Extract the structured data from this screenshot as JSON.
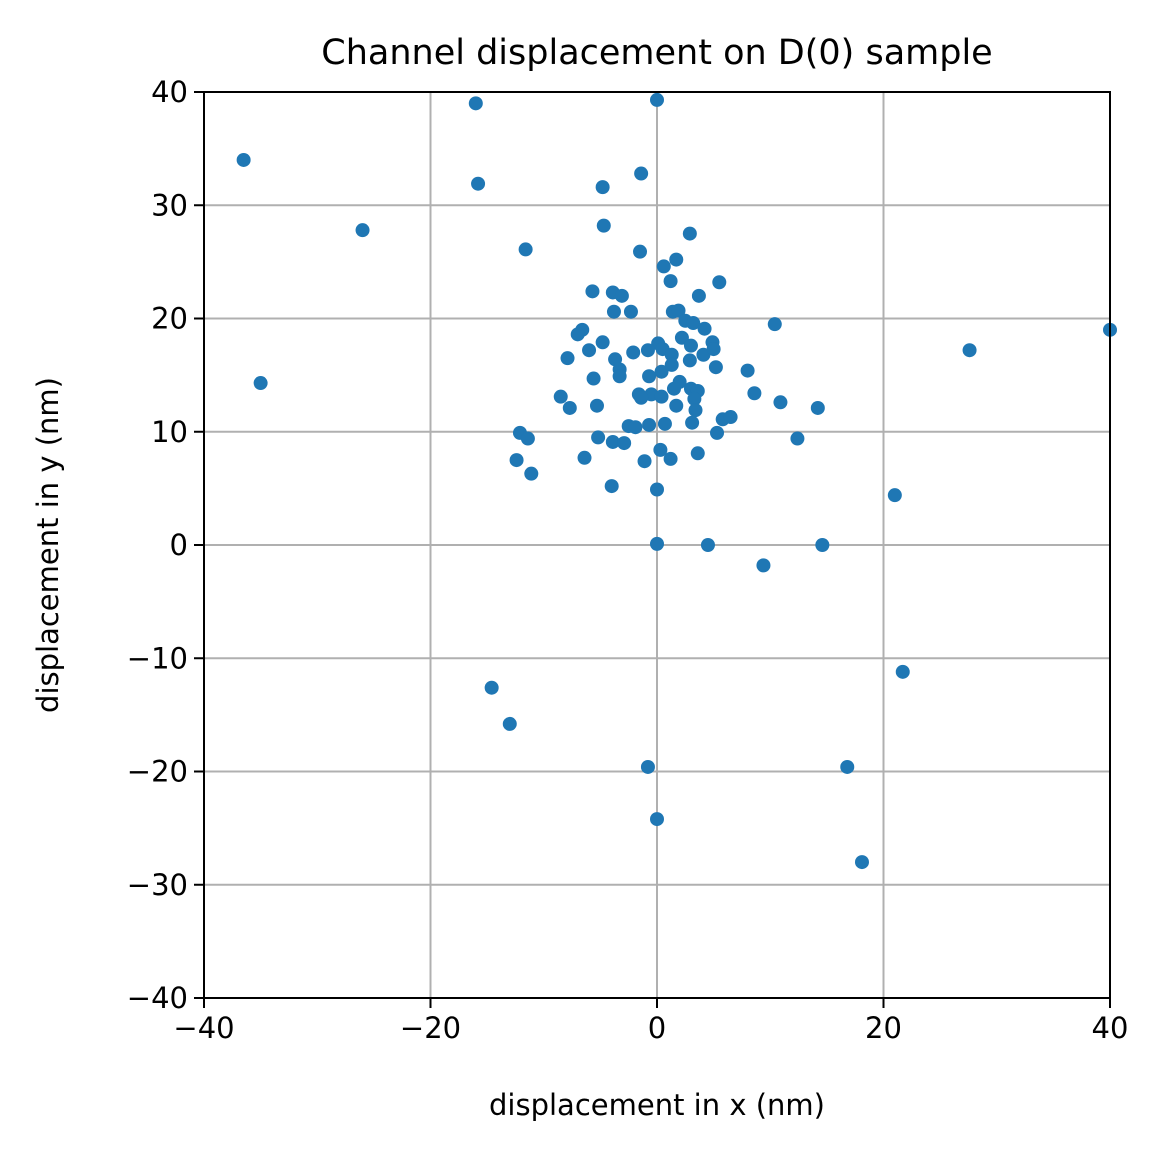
{
  "chart_data": {
    "type": "scatter",
    "title": "Channel displacement on D(0) sample",
    "xlabel": "displacement in x (nm)",
    "ylabel": "displacement in y (nm)",
    "xlim": [
      -40,
      40
    ],
    "ylim": [
      -40,
      40
    ],
    "xticks": [
      -40,
      -20,
      0,
      20,
      40
    ],
    "yticks": [
      -40,
      -30,
      -20,
      -10,
      0,
      10,
      20,
      30,
      40
    ],
    "xtick_labels": [
      "−40",
      "−20",
      "0",
      "20",
      "40"
    ],
    "ytick_labels": [
      "−40",
      "−30",
      "−20",
      "−10",
      "0",
      "10",
      "20",
      "30",
      "40"
    ],
    "grid": true,
    "color": "#1f77b4",
    "points": [
      [
        -16,
        39
      ],
      [
        0,
        39.3
      ],
      [
        -36.5,
        34
      ],
      [
        -15.8,
        31.9
      ],
      [
        -4.8,
        31.6
      ],
      [
        -1.4,
        32.8
      ],
      [
        -26,
        27.8
      ],
      [
        -4.7,
        28.2
      ],
      [
        2.9,
        27.5
      ],
      [
        -11.6,
        26.1
      ],
      [
        -1.5,
        25.9
      ],
      [
        0.6,
        24.6
      ],
      [
        1.7,
        25.2
      ],
      [
        1.2,
        23.3
      ],
      [
        5.5,
        23.2
      ],
      [
        -5.7,
        22.4
      ],
      [
        -3.9,
        22.3
      ],
      [
        -3.1,
        22.0
      ],
      [
        3.7,
        22.0
      ],
      [
        -3.8,
        20.6
      ],
      [
        -2.3,
        20.6
      ],
      [
        1.4,
        20.6
      ],
      [
        1.9,
        20.7
      ],
      [
        2.5,
        19.8
      ],
      [
        3.2,
        19.6
      ],
      [
        4.2,
        19.1
      ],
      [
        10.4,
        19.5
      ],
      [
        40,
        19.0
      ],
      [
        -6.6,
        19.0
      ],
      [
        -7.0,
        18.6
      ],
      [
        -4.8,
        17.9
      ],
      [
        2.2,
        18.3
      ],
      [
        4.9,
        17.9
      ],
      [
        0.1,
        17.8
      ],
      [
        3.0,
        17.6
      ],
      [
        -6.0,
        17.2
      ],
      [
        -2.1,
        17.0
      ],
      [
        -0.8,
        17.2
      ],
      [
        0.5,
        17.3
      ],
      [
        1.3,
        16.8
      ],
      [
        4.1,
        16.8
      ],
      [
        5.0,
        17.3
      ],
      [
        27.6,
        17.2
      ],
      [
        -7.9,
        16.5
      ],
      [
        -3.7,
        16.4
      ],
      [
        2.9,
        16.3
      ],
      [
        -3.3,
        15.5
      ],
      [
        0.4,
        15.3
      ],
      [
        1.3,
        15.9
      ],
      [
        5.2,
        15.7
      ],
      [
        -5.6,
        14.7
      ],
      [
        -3.3,
        14.9
      ],
      [
        -0.7,
        14.9
      ],
      [
        2.0,
        14.4
      ],
      [
        8.0,
        15.4
      ],
      [
        -35,
        14.3
      ],
      [
        1.5,
        13.8
      ],
      [
        3.0,
        13.8
      ],
      [
        3.6,
        13.6
      ],
      [
        -1.6,
        13.3
      ],
      [
        -0.5,
        13.3
      ],
      [
        0.4,
        13.1
      ],
      [
        -1.4,
        13.0
      ],
      [
        3.3,
        12.9
      ],
      [
        8.6,
        13.4
      ],
      [
        -8.5,
        13.1
      ],
      [
        -7.7,
        12.1
      ],
      [
        -5.3,
        12.3
      ],
      [
        1.7,
        12.3
      ],
      [
        3.4,
        11.9
      ],
      [
        10.9,
        12.6
      ],
      [
        14.2,
        12.1
      ],
      [
        5.8,
        11.1
      ],
      [
        6.5,
        11.3
      ],
      [
        -2.5,
        10.5
      ],
      [
        -1.9,
        10.4
      ],
      [
        0.7,
        10.7
      ],
      [
        3.1,
        10.8
      ],
      [
        -0.7,
        10.6
      ],
      [
        -12.1,
        9.9
      ],
      [
        -11.4,
        9.4
      ],
      [
        -5.2,
        9.5
      ],
      [
        -3.9,
        9.1
      ],
      [
        -2.9,
        9.0
      ],
      [
        5.3,
        9.9
      ],
      [
        12.4,
        9.4
      ],
      [
        0.3,
        8.4
      ],
      [
        3.6,
        8.1
      ],
      [
        -12.4,
        7.5
      ],
      [
        -6.4,
        7.7
      ],
      [
        -1.1,
        7.4
      ],
      [
        1.2,
        7.6
      ],
      [
        -11.1,
        6.3
      ],
      [
        -4.0,
        5.2
      ],
      [
        0,
        4.9
      ],
      [
        21.0,
        4.4
      ],
      [
        0,
        0.1
      ],
      [
        4.5,
        0.0
      ],
      [
        14.6,
        0.0
      ],
      [
        9.4,
        -1.8
      ],
      [
        21.7,
        -11.2
      ],
      [
        -14.6,
        -12.6
      ],
      [
        -13.0,
        -15.8
      ],
      [
        -0.8,
        -19.6
      ],
      [
        16.8,
        -19.6
      ],
      [
        0,
        -24.2
      ],
      [
        18.1,
        -28.0
      ]
    ]
  }
}
